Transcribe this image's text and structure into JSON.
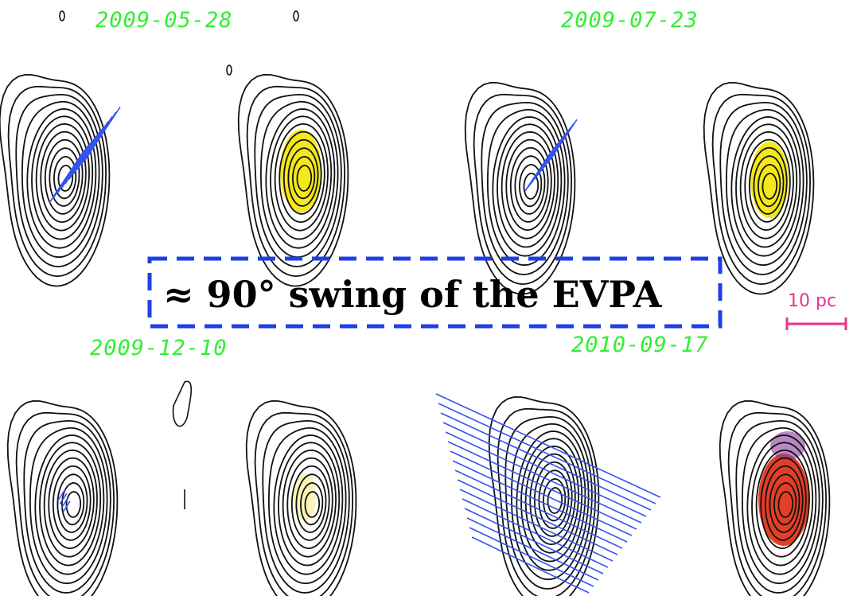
{
  "panels": [
    {
      "date": "2009-05-28"
    },
    {
      "date": "2009-07-23"
    },
    {
      "date": "2009-12-10"
    },
    {
      "date": "2010-09-17"
    }
  ],
  "annotation": "≈ 90° swing of the EVPA",
  "scale_bar": {
    "label": "10 pc"
  }
}
